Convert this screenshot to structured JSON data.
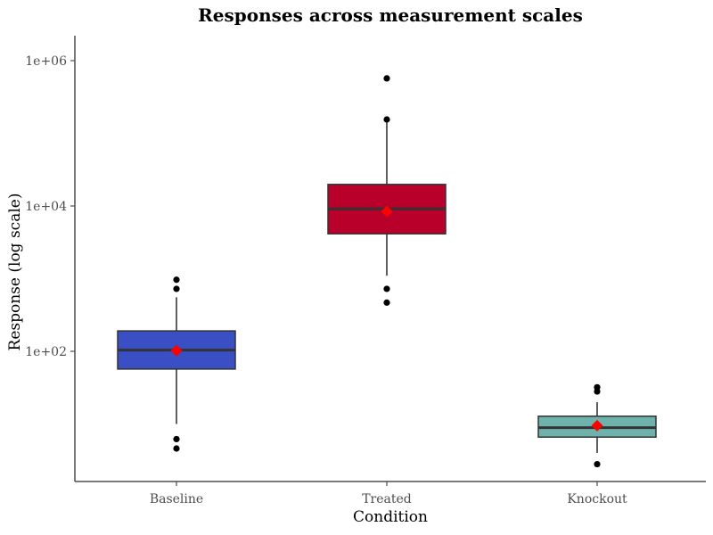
{
  "chart_data": {
    "type": "box",
    "title": "Responses across measurement scales",
    "xlabel": "Condition",
    "ylabel": "Response (log scale)",
    "y_scale": "log10",
    "ylim": [
      2.0,
      1000000
    ],
    "y_ticks": [
      {
        "value": 100,
        "label": "1e+02"
      },
      {
        "value": 10000,
        "label": "1e+04"
      },
      {
        "value": 1000000,
        "label": "1e+06"
      }
    ],
    "categories": [
      "Baseline",
      "Treated",
      "Knockout"
    ],
    "boxes": [
      {
        "category": "Baseline",
        "color": "#3a4fc4",
        "whisker_low": 10,
        "q1": 57,
        "median": 104,
        "q3": 191,
        "whisker_high": 555,
        "mean": 102,
        "outliers": [
          965,
          724,
          6.2,
          4.6
        ]
      },
      {
        "category": "Treated",
        "color": "#b8002a",
        "whisker_low": 1100,
        "q1": 4140,
        "median": 9110,
        "q3": 19800,
        "whisker_high": 150000,
        "mean": 8450,
        "outliers": [
          570000,
          155000,
          724,
          468
        ]
      },
      {
        "category": "Knockout",
        "color": "#6fb2ac",
        "whisker_low": 4.0,
        "q1": 6.6,
        "median": 8.9,
        "q3": 12.8,
        "whisker_high": 20,
        "mean": 9.5,
        "outliers": [
          32,
          28,
          2.8
        ]
      }
    ],
    "mean_marker_color": "#ff0000",
    "grid": false,
    "legend": "none"
  }
}
